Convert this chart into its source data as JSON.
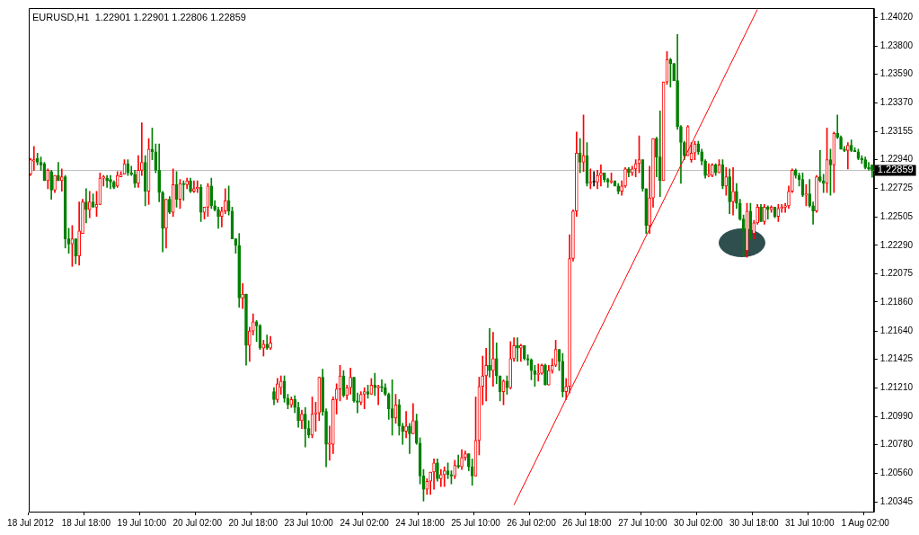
{
  "chart_data": {
    "type": "candlestick",
    "title": "EURUSD,H1  1.22901 1.22901 1.22806 1.22859",
    "categories": [
      "18 Jul 2012",
      null,
      null,
      null,
      null,
      null,
      null,
      null,
      null,
      null,
      null,
      null,
      null,
      null,
      null,
      null,
      "18 Jul 18:00",
      null,
      null,
      null,
      null,
      null,
      null,
      null,
      null,
      null,
      null,
      null,
      null,
      null,
      null,
      null,
      "19 Jul 10:00",
      null,
      null,
      null,
      null,
      null,
      null,
      null,
      null,
      null,
      null,
      null,
      null,
      null,
      null,
      null,
      "20 Jul 02:00",
      null,
      null,
      null,
      null,
      null,
      null,
      null,
      null,
      null,
      null,
      null,
      null,
      null,
      null,
      null,
      "20 Jul 18:00",
      null,
      null,
      null,
      null,
      null,
      null,
      null,
      null,
      null,
      null,
      null,
      null,
      null,
      null,
      null,
      "23 Jul 10:00",
      null,
      null,
      null,
      null,
      null,
      null,
      null,
      null,
      null,
      null,
      null,
      null,
      null,
      null,
      null,
      "24 Jul 02:00",
      null,
      null,
      null,
      null,
      null,
      null,
      null,
      null,
      null,
      null,
      null,
      null,
      null,
      null,
      null,
      "24 Jul 18:00",
      null,
      null,
      null,
      null,
      null,
      null,
      null,
      null,
      null,
      null,
      null,
      null,
      null,
      null,
      null,
      "25 Jul 10:00",
      null,
      null,
      null,
      null,
      null,
      null,
      null,
      null,
      null,
      null,
      null,
      null,
      null,
      null,
      null,
      "26 Jul 02:00",
      null,
      null,
      null,
      null,
      null,
      null,
      null,
      null,
      null,
      null,
      null,
      null,
      null,
      null,
      null,
      "26 Jul 18:00",
      null,
      null,
      null,
      null,
      null,
      null,
      null,
      null,
      null,
      null,
      null,
      null,
      null,
      null,
      null,
      "27 Jul 10:00",
      null,
      null,
      null,
      null,
      null,
      null,
      null,
      null,
      null,
      null,
      null,
      null,
      null,
      null,
      null,
      "30 Jul 02:00",
      null,
      null,
      null,
      null,
      null,
      null,
      null,
      null,
      null,
      null,
      null,
      null,
      null,
      null,
      null,
      "30 Jul 18:00",
      null,
      null,
      null,
      null,
      null,
      null,
      null,
      null,
      null,
      null,
      null,
      null,
      null,
      null,
      null,
      "31 Jul 10:00",
      null,
      null,
      null,
      null,
      null,
      null,
      null,
      null,
      null,
      null,
      null,
      null,
      null,
      null,
      null,
      "1 Aug 02:00",
      null,
      null
    ],
    "ohlc": [
      [
        1.2283,
        1.2295,
        1.2282,
        1.2294
      ],
      [
        1.2293,
        1.2304,
        1.2286,
        1.2294
      ],
      [
        1.2295,
        1.2299,
        1.229,
        1.2292
      ],
      [
        1.2292,
        1.2296,
        1.2286,
        1.229
      ],
      [
        1.2291,
        1.2292,
        1.2278,
        1.2278
      ],
      [
        1.2278,
        1.2287,
        1.2272,
        1.2286
      ],
      [
        1.2285,
        1.2286,
        1.2264,
        1.2271
      ],
      [
        1.2271,
        1.2282,
        1.2269,
        1.2282
      ],
      [
        1.2282,
        1.2292,
        1.2278,
        1.2278
      ],
      [
        1.2278,
        1.2287,
        1.227,
        1.2281
      ],
      [
        1.2281,
        1.2282,
        1.2227,
        1.2234
      ],
      [
        1.2234,
        1.2242,
        1.2223,
        1.223
      ],
      [
        1.223,
        1.2244,
        1.2213,
        1.2234
      ],
      [
        1.2234,
        1.2234,
        1.2215,
        1.2221
      ],
      [
        1.2221,
        1.2262,
        1.2214,
        1.224
      ],
      [
        1.2238,
        1.2264,
        1.2238,
        1.2262
      ],
      [
        1.2262,
        1.2272,
        1.2246,
        1.2256
      ],
      [
        1.2256,
        1.227,
        1.225,
        1.2262
      ],
      [
        1.2262,
        1.2268,
        1.2258,
        1.2258
      ],
      [
        1.2258,
        1.227,
        1.2251,
        1.226
      ],
      [
        1.226,
        1.2284,
        1.226,
        1.228
      ],
      [
        1.228,
        1.2282,
        1.2274,
        1.2281
      ],
      [
        1.228,
        1.2282,
        1.2273,
        1.2278
      ],
      [
        1.2279,
        1.2282,
        1.2272,
        1.2277
      ],
      [
        1.2277,
        1.2278,
        1.2272,
        1.2273
      ],
      [
        1.2274,
        1.2285,
        1.2273,
        1.2282
      ],
      [
        1.2281,
        1.2285,
        1.2281,
        1.2283
      ],
      [
        1.2283,
        1.2294,
        1.2283,
        1.2291
      ],
      [
        1.2291,
        1.2294,
        1.2282,
        1.2284
      ],
      [
        1.2284,
        1.2289,
        1.2282,
        1.2283
      ],
      [
        1.2283,
        1.2286,
        1.2273,
        1.2276
      ],
      [
        1.2276,
        1.2297,
        1.2273,
        1.2286
      ],
      [
        1.2286,
        1.2322,
        1.2282,
        1.2292
      ],
      [
        1.2292,
        1.2297,
        1.2259,
        1.227
      ],
      [
        1.227,
        1.231,
        1.226,
        1.2302
      ],
      [
        1.2302,
        1.2318,
        1.2294,
        1.23
      ],
      [
        1.23,
        1.2306,
        1.2284,
        1.2286
      ],
      [
        1.2286,
        1.2306,
        1.2262,
        1.2269
      ],
      [
        1.2269,
        1.227,
        1.2224,
        1.2242
      ],
      [
        1.2242,
        1.2264,
        1.2227,
        1.2264
      ],
      [
        1.2264,
        1.2266,
        1.2253,
        1.2254
      ],
      [
        1.2254,
        1.2287,
        1.2251,
        1.2275
      ],
      [
        1.2275,
        1.2285,
        1.2258,
        1.2264
      ],
      [
        1.2264,
        1.2279,
        1.2257,
        1.2276
      ],
      [
        1.2276,
        1.2278,
        1.2263,
        1.2275
      ],
      [
        1.2275,
        1.228,
        1.2272,
        1.2278
      ],
      [
        1.2278,
        1.228,
        1.2269,
        1.227
      ],
      [
        1.227,
        1.2278,
        1.2269,
        1.2272
      ],
      [
        1.2272,
        1.2278,
        1.2269,
        1.2273
      ],
      [
        1.2273,
        1.2275,
        1.2247,
        1.2254
      ],
      [
        1.2254,
        1.2258,
        1.2249,
        1.2258
      ],
      [
        1.2258,
        1.2276,
        1.2251,
        1.2274
      ],
      [
        1.2274,
        1.228,
        1.2257,
        1.2259
      ],
      [
        1.2259,
        1.2263,
        1.2255,
        1.2256
      ],
      [
        1.2256,
        1.2258,
        1.2242,
        1.2251
      ],
      [
        1.2251,
        1.2258,
        1.2243,
        1.2255
      ],
      [
        1.2255,
        1.2272,
        1.2253,
        1.2263
      ],
      [
        1.2263,
        1.2274,
        1.2252,
        1.2255
      ],
      [
        1.2255,
        1.2258,
        1.2234,
        1.2234
      ],
      [
        1.2234,
        1.2234,
        1.2223,
        1.2229
      ],
      [
        1.2229,
        1.2238,
        1.2182,
        1.2189
      ],
      [
        1.2189,
        1.22,
        1.2181,
        1.2192
      ],
      [
        1.2192,
        1.2192,
        1.2138,
        1.2153
      ],
      [
        1.2153,
        1.2167,
        1.2141,
        1.2164
      ],
      [
        1.2164,
        1.2177,
        1.2161,
        1.2171
      ],
      [
        1.2171,
        1.2172,
        1.2156,
        1.2168
      ],
      [
        1.2168,
        1.2169,
        1.215,
        1.2151
      ],
      [
        1.2151,
        1.2157,
        1.2145,
        1.2154
      ],
      [
        1.2154,
        1.2161,
        1.215,
        1.2151
      ],
      [
        1.2151,
        1.216,
        1.215,
        1.2155
      ],
      [
        1.2118,
        1.2121,
        1.2108,
        1.2112
      ],
      [
        1.2112,
        1.2128,
        1.211,
        1.2124
      ],
      [
        1.2121,
        1.213,
        1.2116,
        1.2126
      ],
      [
        1.2126,
        1.213,
        1.211,
        1.2113
      ],
      [
        1.2113,
        1.2116,
        1.2105,
        1.2108
      ],
      [
        1.2108,
        1.2114,
        1.2106,
        1.2112
      ],
      [
        1.2112,
        1.2115,
        1.2102,
        1.2106
      ],
      [
        1.2106,
        1.211,
        1.2091,
        1.2096
      ],
      [
        1.2096,
        1.2104,
        1.209,
        1.2101
      ],
      [
        1.2101,
        1.2106,
        1.2076,
        1.209
      ],
      [
        1.209,
        1.2096,
        1.2083,
        1.2085
      ],
      [
        1.2085,
        1.2114,
        1.2083,
        1.2101
      ],
      [
        1.2101,
        1.211,
        1.2088,
        1.2102
      ],
      [
        1.2102,
        1.2129,
        1.2096,
        1.2129
      ],
      [
        1.2129,
        1.2135,
        1.21,
        1.2103
      ],
      [
        1.2103,
        1.2105,
        1.2061,
        1.2078
      ],
      [
        1.2078,
        1.2092,
        1.2066,
        1.2079
      ],
      [
        1.2078,
        1.2114,
        1.2071,
        1.2112
      ],
      [
        1.2112,
        1.2124,
        1.2101,
        1.212
      ],
      [
        1.212,
        1.2138,
        1.2111,
        1.213
      ],
      [
        1.213,
        1.2134,
        1.2114,
        1.2115
      ],
      [
        1.2115,
        1.2123,
        1.2112,
        1.2121
      ],
      [
        1.2121,
        1.2136,
        1.2116,
        1.2129
      ],
      [
        1.2129,
        1.2129,
        1.211,
        1.2111
      ],
      [
        1.2111,
        1.2117,
        1.2102,
        1.211
      ],
      [
        1.211,
        1.2118,
        1.2108,
        1.2116
      ],
      [
        1.2116,
        1.2121,
        1.2105,
        1.2118
      ],
      [
        1.2118,
        1.2123,
        1.2113,
        1.2116
      ],
      [
        1.2116,
        1.2128,
        1.2116,
        1.2123
      ],
      [
        1.2123,
        1.2132,
        1.2115,
        1.2121
      ],
      [
        1.2121,
        1.2123,
        1.2108,
        1.2122
      ],
      [
        1.2122,
        1.2127,
        1.2118,
        1.2121
      ],
      [
        1.2121,
        1.2124,
        1.2115,
        1.2116
      ],
      [
        1.2116,
        1.2117,
        1.2097,
        1.2105
      ],
      [
        1.2105,
        1.2127,
        1.2085,
        1.2098
      ],
      [
        1.2098,
        1.2116,
        1.2094,
        1.2108
      ],
      [
        1.2108,
        1.2112,
        1.2085,
        1.2092
      ],
      [
        1.2092,
        1.2094,
        1.2078,
        1.2088
      ],
      [
        1.2088,
        1.2103,
        1.2083,
        1.2092
      ],
      [
        1.2092,
        1.2094,
        1.2071,
        1.2086
      ],
      [
        1.2086,
        1.2109,
        1.2086,
        1.2096
      ],
      [
        1.2096,
        1.2101,
        1.2078,
        1.2079
      ],
      [
        1.2079,
        1.2083,
        1.2048,
        1.2054
      ],
      [
        1.2054,
        1.2059,
        1.2035,
        1.2044
      ],
      [
        1.2044,
        1.2052,
        1.204,
        1.205
      ],
      [
        1.205,
        1.2057,
        1.204,
        1.2057
      ],
      [
        1.2057,
        1.2067,
        1.2044,
        1.2064
      ],
      [
        1.2064,
        1.2067,
        1.205,
        1.2052
      ],
      [
        1.2052,
        1.2059,
        1.2046,
        1.2055
      ],
      [
        1.2055,
        1.2061,
        1.2046,
        1.2058
      ],
      [
        1.2058,
        1.2064,
        1.2052,
        1.2055
      ],
      [
        1.2055,
        1.2058,
        1.2048,
        1.2054
      ],
      [
        1.2054,
        1.2066,
        1.2052,
        1.2062
      ],
      [
        1.2062,
        1.207,
        1.206,
        1.2061
      ],
      [
        1.2061,
        1.2074,
        1.2059,
        1.2068
      ],
      [
        1.2068,
        1.2073,
        1.2066,
        1.2071
      ],
      [
        1.2071,
        1.2071,
        1.2058,
        1.2061
      ],
      [
        1.2061,
        1.2067,
        1.2047,
        1.2054
      ],
      [
        1.2054,
        1.2114,
        1.2054,
        1.2081
      ],
      [
        1.2081,
        1.2129,
        1.207,
        1.2122
      ],
      [
        1.2122,
        1.2145,
        1.2108,
        1.213
      ],
      [
        1.213,
        1.2151,
        1.2111,
        1.2138
      ],
      [
        1.2138,
        1.2166,
        1.2129,
        1.2134
      ],
      [
        1.2134,
        1.2163,
        1.2122,
        1.2143
      ],
      [
        1.2143,
        1.2155,
        1.2124,
        1.213
      ],
      [
        1.213,
        1.213,
        1.2111,
        1.2118
      ],
      [
        1.2118,
        1.2127,
        1.2108,
        1.2126
      ],
      [
        1.2126,
        1.213,
        1.2116,
        1.2121
      ],
      [
        1.2121,
        1.2156,
        1.212,
        1.2143
      ],
      [
        1.2143,
        1.2159,
        1.2141,
        1.2153
      ],
      [
        1.2153,
        1.2159,
        1.2141,
        1.2151
      ],
      [
        1.2151,
        1.2154,
        1.2141,
        1.2153
      ],
      [
        1.2153,
        1.2153,
        1.2142,
        1.2143
      ],
      [
        1.2143,
        1.2146,
        1.2138,
        1.2142
      ],
      [
        1.2142,
        1.2143,
        1.2127,
        1.2134
      ],
      [
        1.2134,
        1.2138,
        1.2122,
        1.2131
      ],
      [
        1.2131,
        1.2139,
        1.2126,
        1.2132
      ],
      [
        1.2132,
        1.2139,
        1.2131,
        1.2138
      ],
      [
        1.2138,
        1.2139,
        1.2123,
        1.2123
      ],
      [
        1.2123,
        1.2138,
        1.2123,
        1.2134
      ],
      [
        1.2134,
        1.2143,
        1.2132,
        1.2138
      ],
      [
        1.2138,
        1.2157,
        1.2137,
        1.215
      ],
      [
        1.215,
        1.215,
        1.2134,
        1.2141
      ],
      [
        1.2141,
        1.2147,
        1.2114,
        1.2118
      ],
      [
        1.2118,
        1.2128,
        1.2112,
        1.2122
      ],
      [
        1.2122,
        1.2237,
        1.2117,
        1.2219
      ],
      [
        1.2219,
        1.2256,
        1.2217,
        1.2255
      ],
      [
        1.2255,
        1.2315,
        1.2251,
        1.2299
      ],
      [
        1.2299,
        1.231,
        1.2284,
        1.2292
      ],
      [
        1.2292,
        1.2328,
        1.2285,
        1.2297
      ],
      [
        1.2297,
        1.2307,
        1.2274,
        1.2276
      ],
      [
        1.2276,
        1.2287,
        1.2272,
        1.2277
      ],
      [
        1.2277,
        1.2285,
        1.2274,
        1.2277
      ],
      [
        1.2277,
        1.2286,
        1.2272,
        1.2282
      ],
      [
        1.2282,
        1.229,
        1.2274,
        1.2284
      ],
      [
        1.2284,
        1.2284,
        1.2277,
        1.2279
      ],
      [
        1.2279,
        1.228,
        1.2273,
        1.2277
      ],
      [
        1.2277,
        1.2284,
        1.2276,
        1.2278
      ],
      [
        1.2278,
        1.2278,
        1.2274,
        1.2274
      ],
      [
        1.2274,
        1.2276,
        1.2268,
        1.227
      ],
      [
        1.227,
        1.2278,
        1.2267,
        1.2274
      ],
      [
        1.2274,
        1.2288,
        1.2273,
        1.2287
      ],
      [
        1.2287,
        1.2288,
        1.2281,
        1.2284
      ],
      [
        1.2284,
        1.2289,
        1.2282,
        1.2287
      ],
      [
        1.2287,
        1.2294,
        1.2281,
        1.2291
      ],
      [
        1.2291,
        1.2312,
        1.2284,
        1.2294
      ],
      [
        1.2294,
        1.2294,
        1.227,
        1.2272
      ],
      [
        1.2272,
        1.2272,
        1.2238,
        1.2244
      ],
      [
        1.2244,
        1.2289,
        1.2238,
        1.2265
      ],
      [
        1.2265,
        1.231,
        1.2258,
        1.231
      ],
      [
        1.231,
        1.2311,
        1.2281,
        1.2296
      ],
      [
        1.2296,
        1.2331,
        1.2266,
        1.2278
      ],
      [
        1.2278,
        1.2353,
        1.2278,
        1.2353
      ],
      [
        1.2353,
        1.2376,
        1.2351,
        1.237
      ],
      [
        1.237,
        1.2371,
        1.2349,
        1.2367
      ],
      [
        1.2367,
        1.2367,
        1.2354,
        1.2354
      ],
      [
        1.2354,
        1.2389,
        1.2317,
        1.2319
      ],
      [
        1.2319,
        1.232,
        1.2276,
        1.2307
      ],
      [
        1.2307,
        1.2308,
        1.2294,
        1.2297
      ],
      [
        1.2297,
        1.232,
        1.2297,
        1.2319
      ],
      [
        1.2294,
        1.2307,
        1.2292,
        1.2299
      ],
      [
        1.2299,
        1.2308,
        1.2294,
        1.2306
      ],
      [
        1.2306,
        1.2308,
        1.2298,
        1.23
      ],
      [
        1.23,
        1.2302,
        1.229,
        1.2293
      ],
      [
        1.2293,
        1.2294,
        1.228,
        1.2282
      ],
      [
        1.2282,
        1.2291,
        1.2281,
        1.2283
      ],
      [
        1.2282,
        1.2291,
        1.2281,
        1.229
      ],
      [
        1.229,
        1.2291,
        1.2282,
        1.2284
      ],
      [
        1.2284,
        1.2294,
        1.2284,
        1.229
      ],
      [
        1.229,
        1.2294,
        1.2272,
        1.2274
      ],
      [
        1.2274,
        1.2288,
        1.2267,
        1.2281
      ],
      [
        1.2281,
        1.2287,
        1.2253,
        1.2262
      ],
      [
        1.2262,
        1.2288,
        1.2252,
        1.227
      ],
      [
        1.227,
        1.2276,
        1.2257,
        1.2261
      ],
      [
        1.2261,
        1.2264,
        1.2248,
        1.2249
      ],
      [
        1.2249,
        1.2252,
        1.2221,
        1.224
      ],
      [
        1.2225,
        1.2261,
        1.222,
        1.2255
      ],
      [
        1.2255,
        1.2261,
        1.2234,
        1.2234
      ],
      [
        1.2238,
        1.2248,
        1.2234,
        1.2246
      ],
      [
        1.2246,
        1.226,
        1.2245,
        1.2258
      ],
      [
        1.2258,
        1.226,
        1.2247,
        1.2247
      ],
      [
        1.2247,
        1.226,
        1.2245,
        1.2258
      ],
      [
        1.2258,
        1.2259,
        1.2249,
        1.2256
      ],
      [
        1.2256,
        1.2259,
        1.2254,
        1.2258
      ],
      [
        1.2258,
        1.2258,
        1.225,
        1.2251
      ],
      [
        1.2251,
        1.226,
        1.2247,
        1.2257
      ],
      [
        1.2257,
        1.226,
        1.2254,
        1.2258
      ],
      [
        1.2258,
        1.2261,
        1.2254,
        1.2259
      ],
      [
        1.2259,
        1.2274,
        1.2257,
        1.227
      ],
      [
        1.227,
        1.2287,
        1.2269,
        1.2286
      ],
      [
        1.2286,
        1.2287,
        1.228,
        1.2282
      ],
      [
        1.2282,
        1.2284,
        1.2274,
        1.2279
      ],
      [
        1.2279,
        1.2284,
        1.2266,
        1.2267
      ],
      [
        1.2267,
        1.2275,
        1.2259,
        1.2268
      ],
      [
        1.2268,
        1.2279,
        1.2258,
        1.2259
      ],
      [
        1.2259,
        1.2262,
        1.2245,
        1.2255
      ],
      [
        1.2255,
        1.2282,
        1.2254,
        1.2281
      ],
      [
        1.2281,
        1.2301,
        1.2277,
        1.2278
      ],
      [
        1.2278,
        1.2283,
        1.2269,
        1.2276
      ],
      [
        1.2276,
        1.2318,
        1.2269,
        1.2294
      ],
      [
        1.2294,
        1.2302,
        1.2267,
        1.229
      ],
      [
        1.229,
        1.2315,
        1.2269,
        1.2314
      ],
      [
        1.2314,
        1.2328,
        1.231,
        1.2311
      ],
      [
        1.2311,
        1.2312,
        1.2302,
        1.2302
      ],
      [
        1.2302,
        1.2304,
        1.23,
        1.2301
      ],
      [
        1.2301,
        1.2307,
        1.2287,
        1.2305
      ],
      [
        1.2305,
        1.2309,
        1.23,
        1.2301
      ],
      [
        1.2301,
        1.2303,
        1.23,
        1.23
      ],
      [
        1.23,
        1.2302,
        1.2294,
        1.2295
      ],
      [
        1.2295,
        1.2297,
        1.2291,
        1.2294
      ],
      [
        1.2294,
        1.2296,
        1.2287,
        1.2288
      ],
      [
        1.2288,
        1.2292,
        1.2286,
        1.2287
      ],
      [
        1.22901,
        1.22901,
        1.22806,
        1.22859
      ]
    ],
    "colors": [
      "#ff0000",
      "#ff0000",
      "#008000",
      "#008000",
      "#008000",
      "#ff0000",
      "#008000",
      "#ff0000",
      "#008000",
      "#ff0000",
      "#008000",
      "#008000",
      "#ff0000",
      "#008000",
      "#ff0000",
      "#ff0000",
      "#008000",
      "#ff0000",
      "#008000",
      "#ff0000",
      "#ff0000",
      "#ff0000",
      "#008000",
      "#008000",
      "#008000",
      "#ff0000",
      "#ff0000",
      "#ff0000",
      "#008000",
      "#008000",
      "#008000",
      "#ff0000",
      "#ff0000",
      "#008000",
      "#ff0000",
      "#008000",
      "#008000",
      "#008000",
      "#008000",
      "#ff0000",
      "#008000",
      "#ff0000",
      "#008000",
      "#ff0000",
      "#008000",
      "#ff0000",
      "#008000",
      "#ff0000",
      "#ff0000",
      "#008000",
      "#ff0000",
      "#ff0000",
      "#008000",
      "#008000",
      "#008000",
      "#ff0000",
      "#ff0000",
      "#008000",
      "#008000",
      "#008000",
      "#008000",
      "#ff0000",
      "#008000",
      "#ff0000",
      "#ff0000",
      "#008000",
      "#008000",
      "#ff0000",
      "#008000",
      "#ff0000",
      "#008000",
      "#ff0000",
      "#ff0000",
      "#008000",
      "#008000",
      "#ff0000",
      "#008000",
      "#008000",
      "#ff0000",
      "#008000",
      "#008000",
      "#ff0000",
      "#ff0000",
      "#ff0000",
      "#008000",
      "#008000",
      "#ff0000",
      "#ff0000",
      "#ff0000",
      "#ff0000",
      "#008000",
      "#ff0000",
      "#ff0000",
      "#008000",
      "#008000",
      "#ff0000",
      "#ff0000",
      "#008000",
      "#ff0000",
      "#008000",
      "#ff0000",
      "#008000",
      "#008000",
      "#008000",
      "#008000",
      "#ff0000",
      "#008000",
      "#008000",
      "#ff0000",
      "#008000",
      "#ff0000",
      "#008000",
      "#008000",
      "#008000",
      "#ff0000",
      "#ff0000",
      "#ff0000",
      "#008000",
      "#ff0000",
      "#ff0000",
      "#008000",
      "#008000",
      "#ff0000",
      "#008000",
      "#ff0000",
      "#ff0000",
      "#008000",
      "#008000",
      "#ff0000",
      "#ff0000",
      "#ff0000",
      "#ff0000",
      "#008000",
      "#ff0000",
      "#008000",
      "#008000",
      "#ff0000",
      "#008000",
      "#ff0000",
      "#ff0000",
      "#008000",
      "#ff0000",
      "#008000",
      "#008000",
      "#008000",
      "#008000",
      "#ff0000",
      "#ff0000",
      "#008000",
      "#ff0000",
      "#ff0000",
      "#ff0000",
      "#008000",
      "#008000",
      "#ff0000",
      "#ff0000",
      "#ff0000",
      "#ff0000",
      "#008000",
      "#ff0000",
      "#008000",
      "#ff0000",
      "#000000",
      "#ff0000",
      "#ff0000",
      "#008000",
      "#008000",
      "#ff0000",
      "#008000",
      "#008000",
      "#ff0000",
      "#ff0000",
      "#008000",
      "#ff0000",
      "#ff0000",
      "#ff0000",
      "#008000",
      "#008000",
      "#ff0000",
      "#ff0000",
      "#008000",
      "#008000",
      "#ff0000",
      "#ff0000",
      "#008000",
      "#008000",
      "#008000",
      "#008000",
      "#008000",
      "#ff0000",
      "#ff0000",
      "#ff0000",
      "#008000",
      "#008000",
      "#008000",
      "#ff0000",
      "#ff0000",
      "#008000",
      "#ff0000",
      "#008000",
      "#ff0000",
      "#008000",
      "#ff0000",
      "#008000",
      "#008000",
      "#008000",
      "#ff0000",
      "#008000",
      "#ff0000",
      "#ff0000",
      "#008000",
      "#ff0000",
      "#008000",
      "#ff0000",
      "#008000",
      "#ff0000",
      "#ff0000",
      "#ff0000",
      "#ff0000",
      "#ff0000",
      "#008000",
      "#008000",
      "#008000",
      "#ff0000",
      "#008000",
      "#008000",
      "#ff0000",
      "#008000",
      "#008000",
      "#ff0000",
      "#008000",
      "#ff0000",
      "#008000",
      "#008000",
      "#008000",
      "#ff0000",
      "#008000",
      "#008000",
      "#008000",
      "#008000",
      "#008000",
      "#008000",
      "#008000"
    ],
    "series": [
      {
        "type": "line",
        "color": "#ff0000",
        "values": [
          null,
          null,
          null,
          null,
          null,
          null,
          null,
          null,
          null,
          null,
          null,
          null,
          null,
          null,
          null,
          null,
          null,
          null,
          null,
          null,
          null,
          null,
          null,
          null,
          null,
          null,
          null,
          null,
          null,
          null,
          null,
          null,
          null,
          null,
          null,
          null,
          null,
          null,
          null,
          null,
          null,
          null,
          null,
          null,
          null,
          null,
          null,
          null,
          null,
          null,
          null,
          null,
          null,
          null,
          null,
          null,
          null,
          null,
          null,
          null,
          null,
          null,
          null,
          null,
          null,
          null,
          null,
          null,
          null,
          null,
          null,
          null,
          null,
          null,
          null,
          null,
          null,
          null,
          null,
          null,
          null,
          null,
          null,
          null,
          null,
          null,
          null,
          null,
          null,
          null,
          null,
          null,
          null,
          null,
          null,
          null,
          null,
          null,
          null,
          null,
          null,
          null,
          null,
          null,
          null,
          null,
          null,
          null,
          null,
          null,
          null,
          null,
          null,
          null,
          null,
          null,
          null,
          null,
          null,
          null,
          null,
          null,
          null,
          null,
          null,
          null,
          null,
          null,
          null,
          null,
          null,
          null,
          null,
          null,
          null,
          null,
          null,
          null,
          null,
          1.2032,
          null,
          null,
          null,
          null,
          null,
          null,
          null,
          null,
          null,
          null,
          null,
          null,
          null,
          null,
          null,
          null,
          null,
          null,
          null,
          null,
          null,
          null,
          null,
          null,
          null,
          null,
          null,
          null,
          null,
          null,
          null,
          null,
          null,
          null,
          null,
          null,
          null,
          null,
          null,
          null,
          null,
          null,
          null,
          null,
          null,
          null,
          null,
          null,
          null,
          null,
          null,
          null,
          null,
          null,
          null,
          null,
          null,
          null,
          null,
          null,
          null,
          null,
          null,
          null,
          null,
          null,
          null,
          null,
          null,
          1.2408,
          null,
          null,
          null,
          null,
          null,
          null,
          null,
          null,
          null,
          null,
          null,
          null,
          null,
          null,
          null,
          null,
          null,
          null,
          null,
          null,
          null,
          null,
          null,
          null,
          null,
          null,
          null,
          null,
          null,
          null,
          null,
          null,
          null
        ]
      }
    ],
    "ylim": [
      1.2027,
      1.2409
    ],
    "yticks": [
      {
        "value": 1.2402,
        "label": "1.24020"
      },
      {
        "value": 1.238,
        "label": "1.23800"
      },
      {
        "value": 1.2359,
        "label": "1.23590"
      },
      {
        "value": 1.2337,
        "label": "1.23370"
      },
      1.23155,
      {
        "value": 1.2294,
        "label": "1.22940"
      },
      1.22725,
      {
        "value": 1.22505,
        "label": "1.22505"
      },
      {
        "value": 1.2229,
        "label": "1.22290"
      },
      1.22075,
      {
        "value": 1.2186,
        "label": "1.21860"
      },
      {
        "value": 1.2164,
        "label": "1.21640"
      },
      1.21425,
      {
        "value": 1.2121,
        "label": "1.21210"
      },
      {
        "value": 1.2099,
        "label": "1.20990"
      },
      {
        "value": 1.2078,
        "label": "1.20780"
      },
      {
        "value": 1.2056,
        "label": "1.20560"
      },
      1.20345
    ],
    "ref_lines": [
      {
        "axis": "y",
        "value": 1.22859,
        "label": "1.22859",
        "color": "#c0c0c0"
      }
    ]
  }
}
